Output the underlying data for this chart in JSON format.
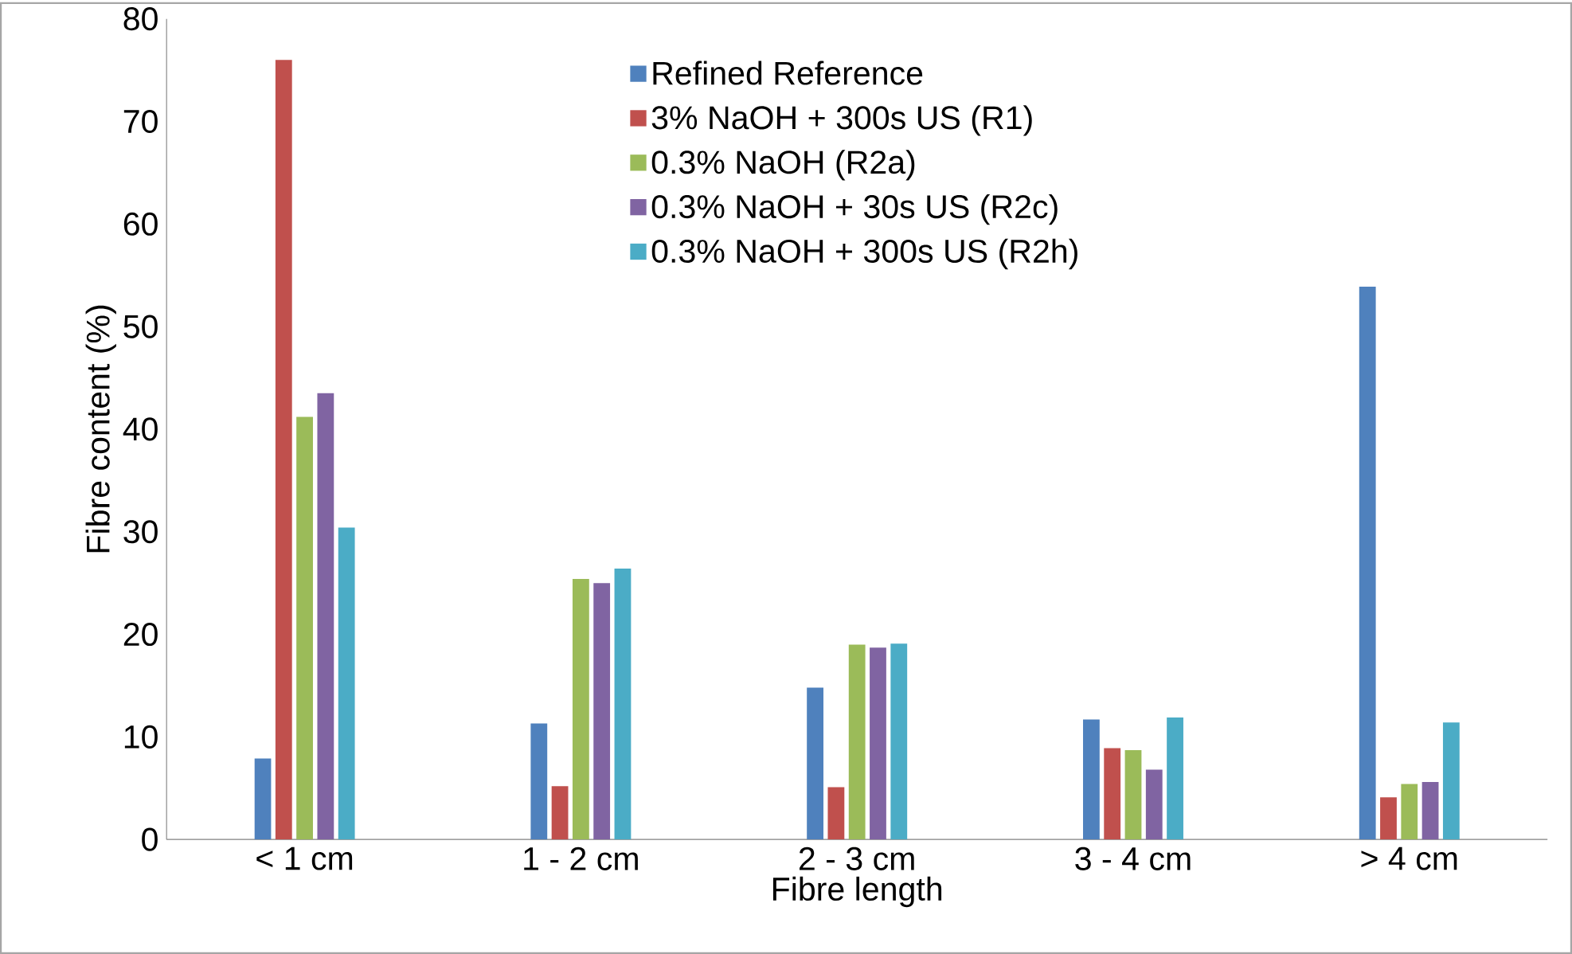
{
  "chart_data": {
    "type": "bar",
    "xlabel": "Fibre length",
    "ylabel": "Fibre content (%)",
    "categories": [
      "< 1 cm",
      "1 - 2 cm",
      "2 - 3 cm",
      "3 - 4 cm",
      "> 4 cm"
    ],
    "series": [
      {
        "name": "Refined Reference",
        "color": "#4f81bd",
        "values": [
          7.9,
          11.3,
          14.8,
          11.7,
          53.9
        ]
      },
      {
        "name": "3% NaOH + 300s US (R1)",
        "color": "#c0504d",
        "values": [
          76.0,
          5.2,
          5.1,
          8.9,
          4.1
        ]
      },
      {
        "name": "0.3% NaOH (R2a)",
        "color": "#9bbb59",
        "values": [
          41.2,
          25.4,
          19.0,
          8.7,
          5.4
        ]
      },
      {
        "name": "0.3% NaOH + 30s US (R2c)",
        "color": "#8064a2",
        "values": [
          43.5,
          25.0,
          18.7,
          6.8,
          5.6
        ]
      },
      {
        "name": "0.3% NaOH + 300s US (R2h)",
        "color": "#4bacc6",
        "values": [
          30.4,
          26.4,
          19.1,
          11.9,
          11.4
        ]
      }
    ],
    "ylim": [
      0,
      80
    ],
    "yticks": [
      0,
      10,
      20,
      30,
      40,
      50,
      60,
      70,
      80
    ],
    "grid": false,
    "legend": "top"
  }
}
